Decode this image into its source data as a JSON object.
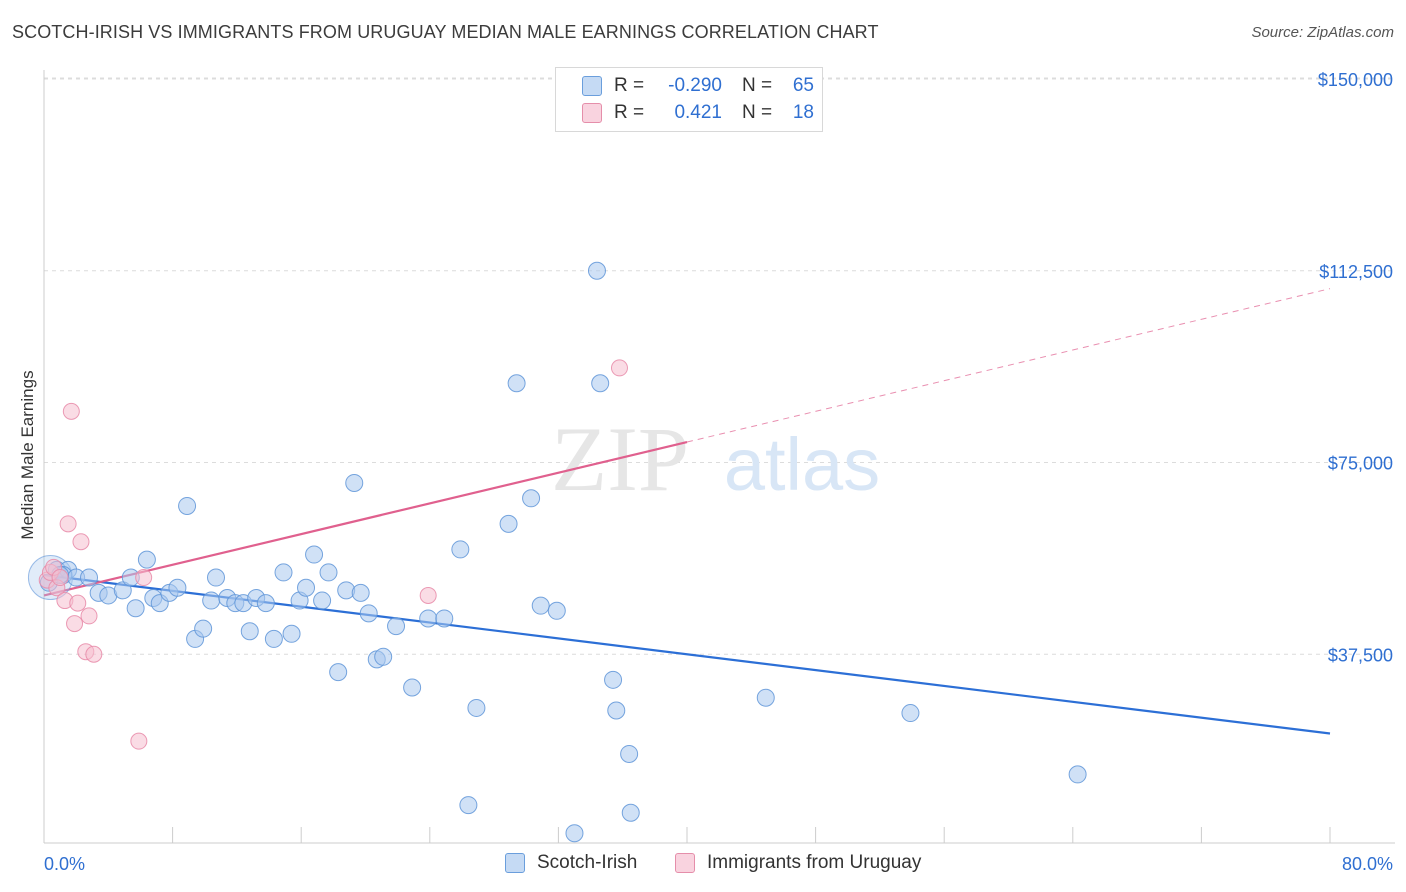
{
  "header": {
    "title": "SCOTCH-IRISH VS IMMIGRANTS FROM URUGUAY MEDIAN MALE EARNINGS CORRELATION CHART",
    "source": "Source: ZipAtlas.com"
  },
  "stats_legend": [
    {
      "r_label": "R =",
      "r_value": "-0.290",
      "n_label": "N =",
      "n_value": "65"
    },
    {
      "r_label": "R =",
      "r_value": "0.421",
      "n_label": "N =",
      "n_value": "18"
    }
  ],
  "watermark": {
    "part1": "ZIP",
    "part2": "atlas"
  },
  "colors": {
    "blue_fill": "#a9c8ee",
    "blue_stroke": "#5f95d8",
    "blue_line": "#2c6fd6",
    "pink_fill": "#f6bfd0",
    "pink_stroke": "#e889a8",
    "pink_line": "#e0608e",
    "axis_label": "#2f6fd1",
    "grid": "#dcdcdc"
  },
  "chart_data": {
    "type": "scatter",
    "title": "SCOTCH-IRISH VS IMMIGRANTS FROM URUGUAY MEDIAN MALE EARNINGS CORRELATION CHART",
    "xlabel": "",
    "ylabel": "Median Male Earnings",
    "xlim": [
      0,
      80
    ],
    "ylim": [
      0,
      155000
    ],
    "x_tick_labels": [
      "0.0%",
      "80.0%"
    ],
    "y_ticks": [
      37500,
      75000,
      112500,
      150000
    ],
    "y_tick_labels": [
      "$37,500",
      "$75,000",
      "$112,500",
      "$150,000"
    ],
    "grid": "horizontal dashed",
    "legend_position": "bottom-center",
    "series": [
      {
        "name": "Scotch-Irish",
        "color": "#a9c8ee",
        "points": [
          [
            0.3,
            51500
          ],
          [
            0.8,
            54000
          ],
          [
            1.5,
            54000
          ],
          [
            1.2,
            53000
          ],
          [
            2.0,
            52500
          ],
          [
            2.8,
            52500
          ],
          [
            3.4,
            49500
          ],
          [
            4.0,
            49000
          ],
          [
            4.9,
            50000
          ],
          [
            5.4,
            52500
          ],
          [
            5.7,
            46500
          ],
          [
            6.4,
            56000
          ],
          [
            6.8,
            48500
          ],
          [
            7.2,
            47500
          ],
          [
            7.8,
            49500
          ],
          [
            8.3,
            50500
          ],
          [
            8.9,
            66500
          ],
          [
            9.4,
            40500
          ],
          [
            9.9,
            42500
          ],
          [
            10.4,
            48000
          ],
          [
            10.7,
            52500
          ],
          [
            11.4,
            48500
          ],
          [
            11.9,
            47500
          ],
          [
            12.4,
            47500
          ],
          [
            12.8,
            42000
          ],
          [
            13.2,
            48500
          ],
          [
            13.8,
            47500
          ],
          [
            14.3,
            40500
          ],
          [
            14.9,
            53500
          ],
          [
            15.4,
            41500
          ],
          [
            15.9,
            48000
          ],
          [
            16.3,
            50500
          ],
          [
            16.8,
            57000
          ],
          [
            17.3,
            48000
          ],
          [
            17.7,
            53500
          ],
          [
            18.3,
            34000
          ],
          [
            18.8,
            50000
          ],
          [
            19.3,
            71000
          ],
          [
            19.7,
            49500
          ],
          [
            20.2,
            45500
          ],
          [
            20.7,
            36500
          ],
          [
            21.1,
            37000
          ],
          [
            21.9,
            43000
          ],
          [
            22.9,
            31000
          ],
          [
            23.9,
            44500
          ],
          [
            24.9,
            44500
          ],
          [
            25.9,
            58000
          ],
          [
            26.4,
            8000
          ],
          [
            26.9,
            27000
          ],
          [
            28.9,
            63000
          ],
          [
            29.4,
            90500
          ],
          [
            30.3,
            68000
          ],
          [
            30.9,
            47000
          ],
          [
            31.9,
            46000
          ],
          [
            33.0,
            2500
          ],
          [
            34.4,
            112500
          ],
          [
            34.6,
            90500
          ],
          [
            35.4,
            32500
          ],
          [
            35.6,
            26500
          ],
          [
            36.4,
            18000
          ],
          [
            36.5,
            6500
          ],
          [
            44.9,
            29000
          ],
          [
            53.9,
            26000
          ],
          [
            64.3,
            14000
          ],
          [
            1.0,
            53000
          ]
        ]
      },
      {
        "name": "Immigrants from Uruguay",
        "color": "#f6bfd0",
        "points": [
          [
            0.2,
            52000
          ],
          [
            0.4,
            53500
          ],
          [
            0.6,
            54500
          ],
          [
            0.8,
            50500
          ],
          [
            1.0,
            52500
          ],
          [
            1.3,
            48000
          ],
          [
            1.5,
            63000
          ],
          [
            1.7,
            85000
          ],
          [
            1.9,
            43500
          ],
          [
            2.1,
            47500
          ],
          [
            2.3,
            59500
          ],
          [
            2.6,
            38000
          ],
          [
            2.8,
            45000
          ],
          [
            3.1,
            37500
          ],
          [
            5.9,
            20500
          ],
          [
            6.2,
            52500
          ],
          [
            23.9,
            49000
          ],
          [
            35.8,
            93500
          ]
        ]
      }
    ],
    "trendlines": [
      {
        "series": "Scotch-Irish",
        "x": [
          0,
          80
        ],
        "y": [
          53000,
          22000
        ],
        "style": "solid"
      },
      {
        "series": "Immigrants from Uruguay",
        "x": [
          0,
          40
        ],
        "y": [
          49000,
          79000
        ],
        "style": "solid"
      },
      {
        "series": "Immigrants from Uruguay",
        "x": [
          40,
          80
        ],
        "y": [
          79000,
          109000
        ],
        "style": "dashed"
      }
    ]
  },
  "bottom_legend": [
    {
      "label": "Scotch-Irish"
    },
    {
      "label": "Immigrants from Uruguay"
    }
  ]
}
